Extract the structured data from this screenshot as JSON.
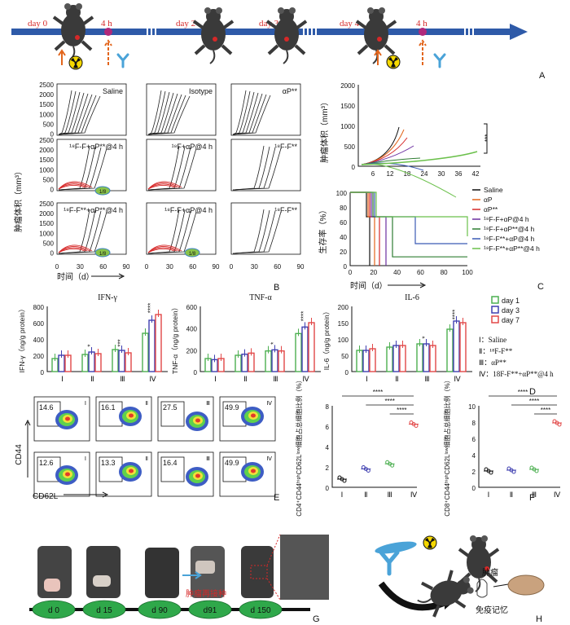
{
  "panelA": {
    "label": "A",
    "timeline": [
      "day 0",
      "4 h",
      "day 2",
      "day 3",
      "day 4",
      "4 h"
    ]
  },
  "panelB": {
    "label": "B",
    "ylabel": "肿瘤体积（mm³）",
    "xlabel": "时间（d）",
    "yticks": [
      "2500",
      "2000",
      "1500",
      "1000",
      "500",
      "0"
    ],
    "xticks": [
      "0",
      "30",
      "60",
      "90"
    ],
    "subplots": [
      "Saline",
      "Isotype",
      "αP**",
      "¹⁸F-F+αP**@4 h",
      "¹⁸F+αP@4 h",
      "¹⁸F-F**",
      "¹⁸F-F**+αP**@4 h",
      "¹⁸F-F+αP@4 h",
      "¹⁸F-F**"
    ],
    "badges": [
      "1/8",
      "1/8",
      "1/8"
    ]
  },
  "panelC": {
    "label": "C",
    "top": {
      "ylabel": "肿瘤体积（mm³）",
      "yticks": [
        "2000",
        "1500",
        "1000",
        "500",
        "0"
      ],
      "xticks": [
        "6",
        "12",
        "18",
        "24",
        "30",
        "36",
        "42"
      ],
      "sig": "***"
    },
    "bottom": {
      "ylabel": "生存率（%）",
      "xlabel": "时间（d）",
      "yticks": [
        "100",
        "80",
        "60",
        "40",
        "20",
        "0"
      ],
      "xticks": [
        "0",
        "20",
        "40",
        "60",
        "80",
        "100"
      ]
    },
    "legend": [
      "Saline",
      "αP",
      "αP**",
      "¹⁸F-F+αP@4 h",
      "¹⁸F-F+αP**@4 h",
      "¹⁸F-F**+αP@4 h",
      "¹⁸F-F**+αP**@4 h"
    ]
  },
  "panelD": {
    "label": "D",
    "charts": [
      {
        "title": "IFN-γ",
        "ylabel": "IFN-γ（ng/g protein）",
        "yticks": [
          "800",
          "600",
          "400",
          "200",
          "0"
        ],
        "ymax": 800
      },
      {
        "title": "TNF-α",
        "ylabel": "TNF-α（ng/g protein）",
        "yticks": [
          "600",
          "400",
          "200",
          "0"
        ],
        "ymax": 600
      },
      {
        "title": "IL-6",
        "ylabel": "IL-6（ng/g protein）",
        "yticks": [
          "200",
          "150",
          "100",
          "50",
          "0"
        ],
        "ymax": 200
      }
    ],
    "groups": [
      "Ⅰ",
      "Ⅱ",
      "Ⅲ",
      "Ⅳ"
    ],
    "legend": [
      "day 1",
      "day 3",
      "day 7"
    ],
    "group_key": [
      "Ⅰ：Saline",
      "Ⅱ：¹⁸F-F**",
      "Ⅲ：αP**",
      "Ⅳ：18F-F**+αP**@4 h"
    ]
  },
  "chart_data": [
    {
      "type": "bar",
      "title": "IFN-γ",
      "categories": [
        "Ⅰ",
        "Ⅱ",
        "Ⅲ",
        "Ⅳ"
      ],
      "series": [
        {
          "name": "day 1",
          "values": [
            160,
            210,
            270,
            470
          ]
        },
        {
          "name": "day 3",
          "values": [
            200,
            240,
            260,
            630
          ]
        },
        {
          "name": "day 7",
          "values": [
            200,
            220,
            230,
            700
          ]
        }
      ],
      "sig": [
        "",
        "*",
        "***",
        "****"
      ],
      "ylim": [
        0,
        800
      ]
    },
    {
      "type": "bar",
      "title": "TNF-α",
      "categories": [
        "Ⅰ",
        "Ⅱ",
        "Ⅲ",
        "Ⅳ"
      ],
      "series": [
        {
          "name": "day 1",
          "values": [
            120,
            150,
            190,
            350
          ]
        },
        {
          "name": "day 3",
          "values": [
            110,
            160,
            200,
            410
          ]
        },
        {
          "name": "day 7",
          "values": [
            120,
            170,
            190,
            450
          ]
        }
      ],
      "sig": [
        "",
        "",
        "*",
        "****"
      ],
      "ylim": [
        0,
        600
      ]
    },
    {
      "type": "bar",
      "title": "IL-6",
      "categories": [
        "Ⅰ",
        "Ⅱ",
        "Ⅲ",
        "Ⅳ"
      ],
      "series": [
        {
          "name": "day 1",
          "values": [
            65,
            75,
            85,
            130
          ]
        },
        {
          "name": "day 3",
          "values": [
            65,
            80,
            85,
            155
          ]
        },
        {
          "name": "day 7",
          "values": [
            70,
            80,
            80,
            150
          ]
        }
      ],
      "sig": [
        "",
        "",
        "*",
        "****"
      ],
      "ylim": [
        0,
        200
      ]
    }
  ],
  "panelE": {
    "label": "E",
    "ylabel": "CD44",
    "xlabel": "CD62L",
    "top": [
      {
        "v": "14.6",
        "g": "Ⅰ"
      },
      {
        "v": "16.1",
        "g": "Ⅱ"
      },
      {
        "v": "27.5",
        "g": "Ⅲ"
      },
      {
        "v": "49.9",
        "g": "Ⅳ"
      }
    ],
    "bottom": [
      {
        "v": "12.6",
        "g": "Ⅰ"
      },
      {
        "v": "13.3",
        "g": "Ⅱ"
      },
      {
        "v": "16.4",
        "g": "Ⅲ"
      },
      {
        "v": "49.9",
        "g": "Ⅳ"
      }
    ]
  },
  "panelF": {
    "label": "F",
    "left_ylabel": "CD4⁺CD44ʰⁱᵍʰCD62Lˡᵒʷ细胞占总细胞比例（%）",
    "right_ylabel": "CD8⁺CD44ʰⁱᵍʰCD62Lˡᵒʷ细胞占总细胞比例（%）",
    "left_yticks": [
      "8",
      "6",
      "4",
      "2",
      "0"
    ],
    "right_yticks": [
      "10",
      "8",
      "6",
      "4",
      "2",
      "0"
    ],
    "groups": [
      "Ⅰ",
      "Ⅱ",
      "Ⅲ",
      "Ⅳ"
    ],
    "sig": [
      "****",
      "****",
      "****"
    ]
  },
  "panelG": {
    "label": "G",
    "days": [
      "d 0",
      "d 15",
      "d 90",
      "d91",
      "d 150"
    ],
    "rechallenge": "肿瘤再接种"
  },
  "panelH": {
    "label": "H",
    "tumor": "肿瘤",
    "memory": "免疫记忆"
  }
}
